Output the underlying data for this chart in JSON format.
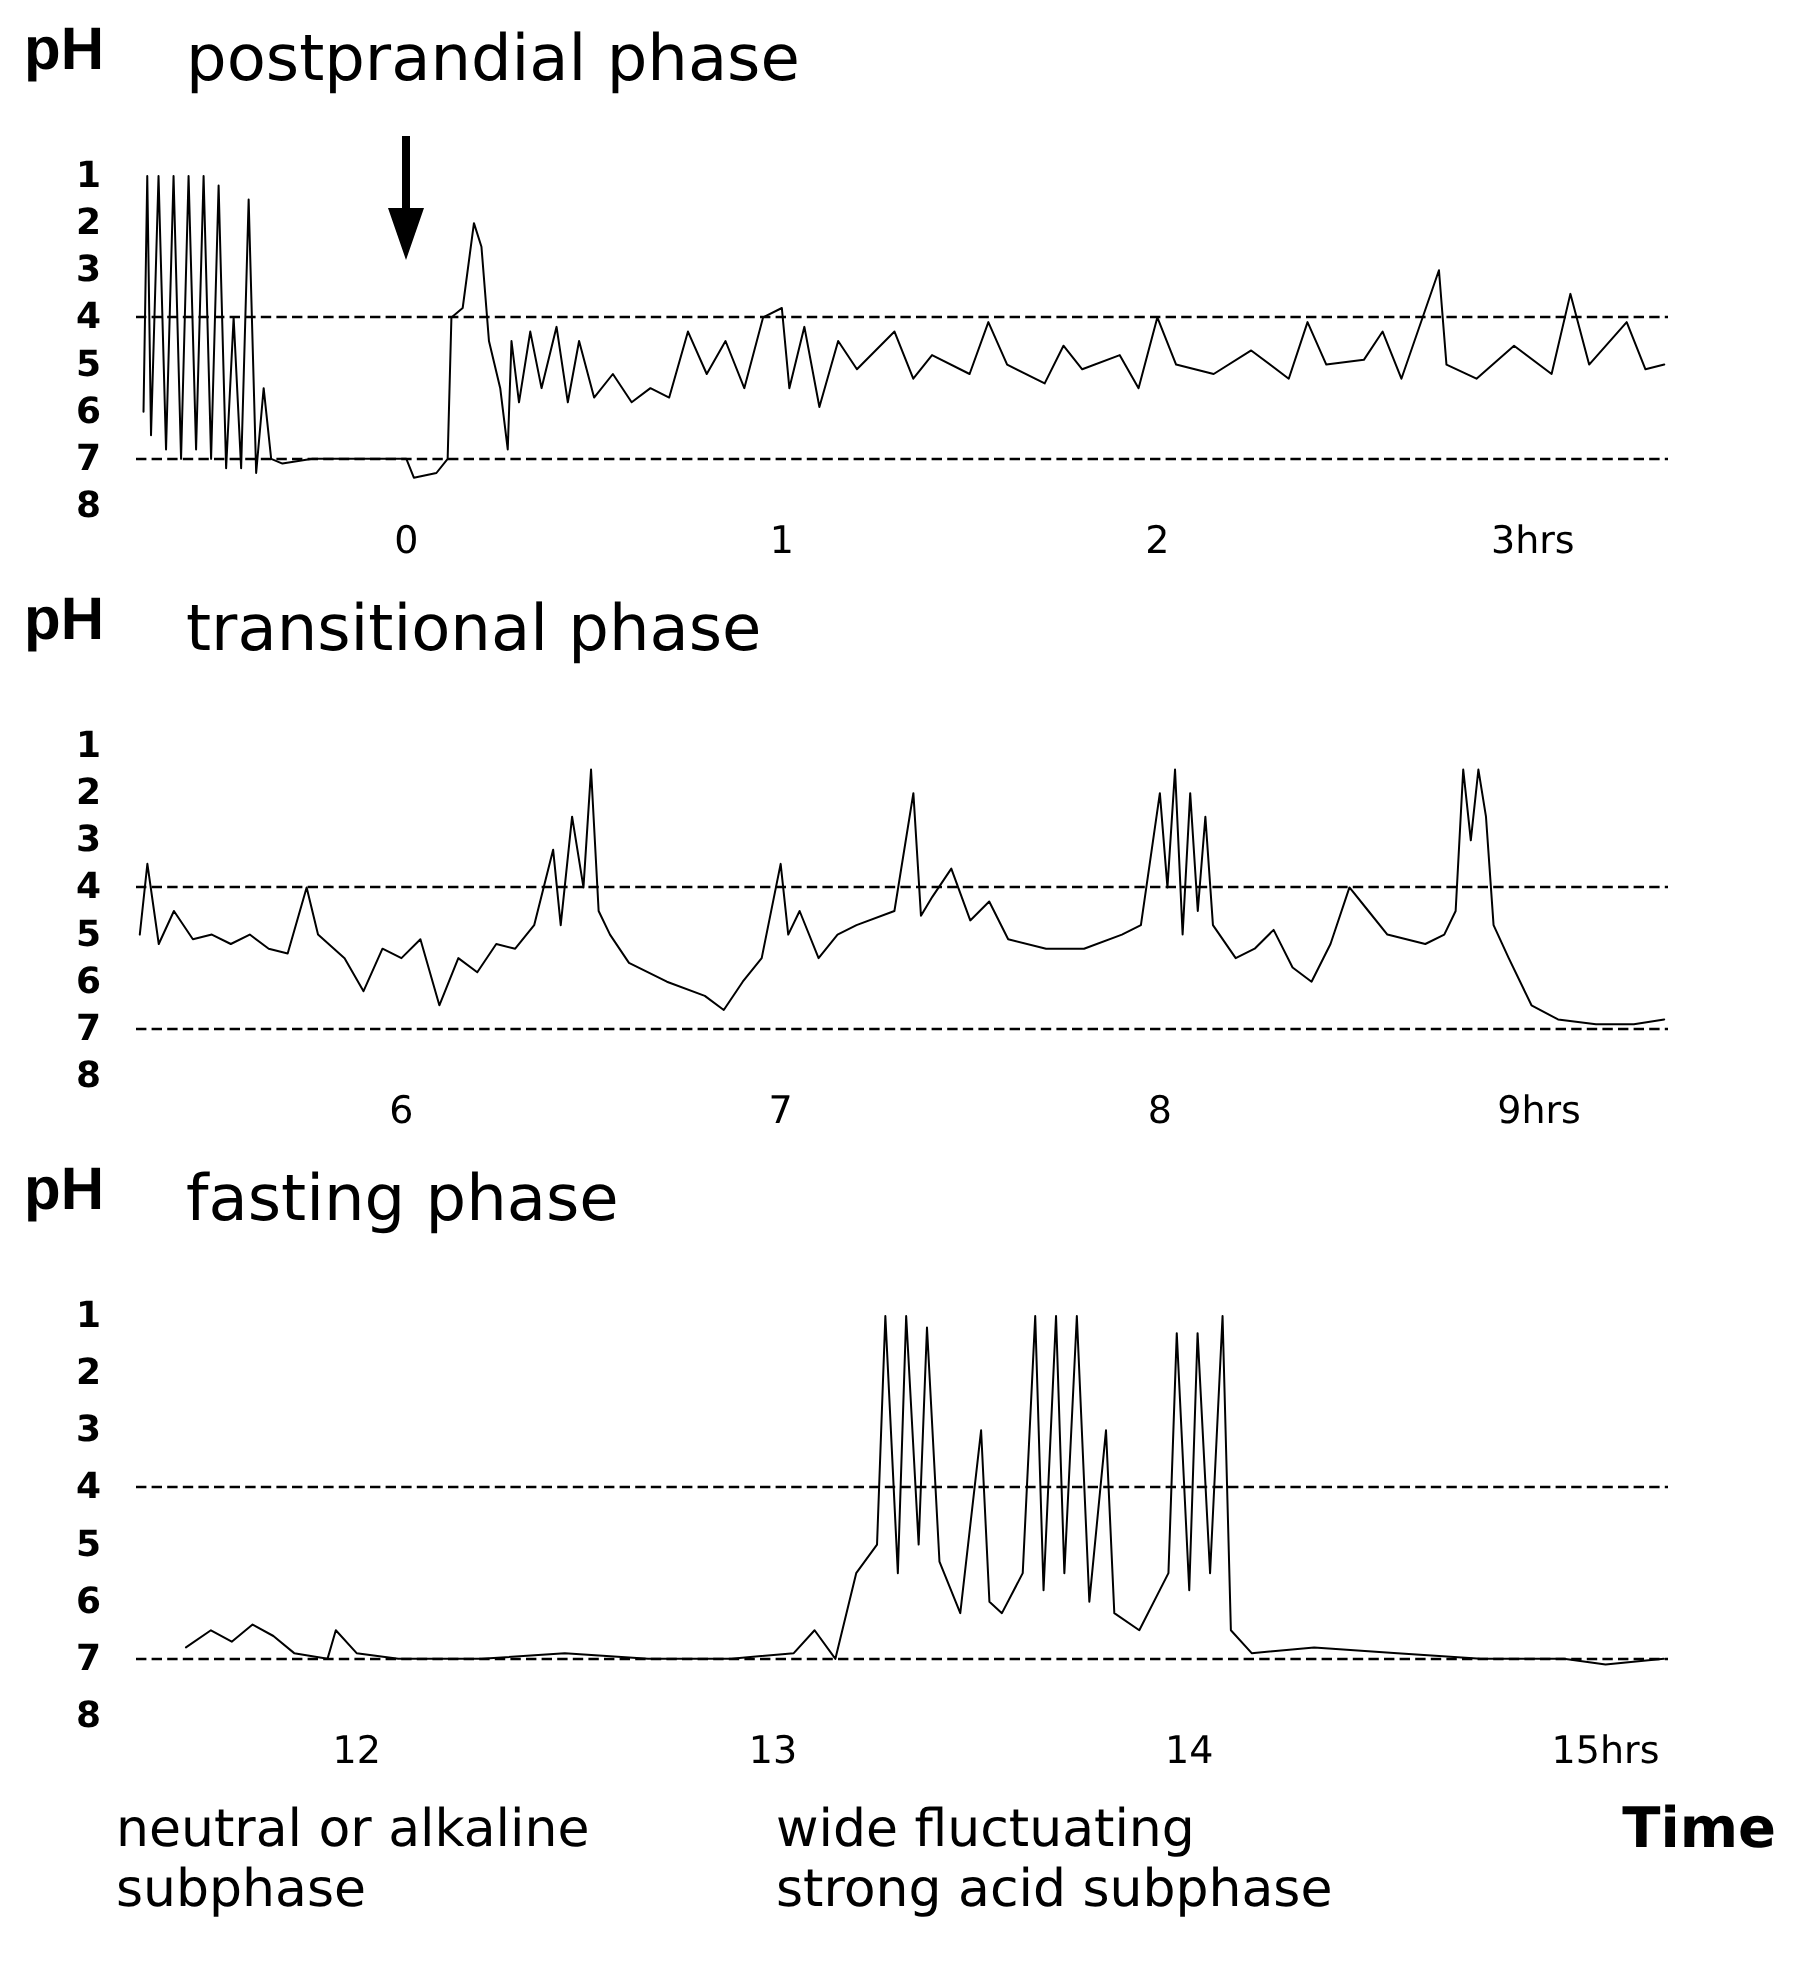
{
  "chart_data": [
    {
      "type": "line",
      "title": "postprandial phase",
      "ylabel": "pH",
      "xlim": [
        -0.72,
        3.36
      ],
      "xticks": [
        0,
        1,
        2,
        {
          "value": 3,
          "label": "3hrs"
        }
      ],
      "ylim": [
        8,
        1
      ],
      "yticks": [
        1,
        2,
        3,
        4,
        5,
        6,
        7,
        8
      ],
      "grid": false,
      "marker": "none",
      "line_style": "solid",
      "ref_lines": [
        {
          "axis": "y",
          "value": 4,
          "color": "#000000",
          "line_style": "dashed"
        },
        {
          "axis": "y",
          "value": 7,
          "color": "#000000",
          "line_style": "dashed"
        }
      ],
      "series": [
        {
          "color": "#000000",
          "x": [
            -0.7,
            -0.69,
            -0.68,
            -0.66,
            -0.64,
            -0.62,
            -0.6,
            -0.58,
            -0.56,
            -0.54,
            -0.52,
            -0.5,
            -0.48,
            -0.46,
            -0.44,
            -0.42,
            -0.4,
            -0.38,
            -0.36,
            -0.33,
            -0.25,
            -0.15,
            -0.05,
            0,
            0.02,
            0.08,
            0.11,
            0.12,
            0.15,
            0.18,
            0.2,
            0.22,
            0.25,
            0.27,
            0.28,
            0.3,
            0.33,
            0.36,
            0.4,
            0.43,
            0.46,
            0.5,
            0.55,
            0.6,
            0.65,
            0.7,
            0.75,
            0.8,
            0.85,
            0.9,
            0.95,
            1,
            1.02,
            1.06,
            1.1,
            1.15,
            1.2,
            1.3,
            1.35,
            1.4,
            1.5,
            1.55,
            1.6,
            1.7,
            1.75,
            1.8,
            1.9,
            1.95,
            2,
            2.05,
            2.15,
            2.25,
            2.35,
            2.4,
            2.45,
            2.55,
            2.6,
            2.65,
            2.75,
            2.77,
            2.85,
            2.95,
            3.05,
            3.1,
            3.15,
            3.25,
            3.3,
            3.35
          ],
          "values": [
            6,
            1,
            6.5,
            1,
            6.8,
            1,
            7,
            1,
            6.8,
            1,
            7,
            1.2,
            7.2,
            4,
            7.2,
            1.5,
            7.3,
            5.5,
            7,
            7.1,
            7,
            7,
            7,
            7,
            7.4,
            7.3,
            7,
            4,
            3.8,
            2,
            2.5,
            4.5,
            5.5,
            6.8,
            4.5,
            5.8,
            4.3,
            5.5,
            4.2,
            5.8,
            4.5,
            5.7,
            5.2,
            5.8,
            5.5,
            5.7,
            4.3,
            5.2,
            4.5,
            5.5,
            4,
            3.8,
            5.5,
            4.2,
            5.9,
            4.5,
            5.1,
            4.3,
            5.3,
            4.8,
            5.2,
            4.1,
            5,
            5.4,
            4.6,
            5.1,
            4.8,
            5.5,
            4,
            5,
            5.2,
            4.7,
            5.3,
            4.1,
            5,
            4.9,
            4.3,
            5.3,
            3,
            5,
            5.3,
            4.6,
            5.2,
            3.5,
            5,
            4.1,
            5.1,
            5
          ]
        }
      ]
    },
    {
      "type": "line",
      "title": "transitional phase",
      "ylabel": "pH",
      "xlim": [
        5.3,
        9.34
      ],
      "xticks": [
        6,
        7,
        8,
        {
          "value": 9,
          "label": "9hrs"
        }
      ],
      "ylim": [
        8,
        1
      ],
      "yticks": [
        1,
        2,
        3,
        4,
        5,
        6,
        7,
        8
      ],
      "grid": false,
      "marker": "none",
      "line_style": "solid",
      "ref_lines": [
        {
          "axis": "y",
          "value": 4,
          "color": "#000000",
          "line_style": "dashed"
        },
        {
          "axis": "y",
          "value": 7,
          "color": "#000000",
          "line_style": "dashed"
        }
      ],
      "series": [
        {
          "color": "#000000",
          "x": [
            5.31,
            5.33,
            5.36,
            5.4,
            5.45,
            5.5,
            5.55,
            5.6,
            5.65,
            5.7,
            5.75,
            5.78,
            5.85,
            5.9,
            5.95,
            6,
            6.05,
            6.1,
            6.15,
            6.2,
            6.25,
            6.3,
            6.35,
            6.4,
            6.42,
            6.45,
            6.48,
            6.5,
            6.52,
            6.55,
            6.6,
            6.7,
            6.8,
            6.85,
            6.9,
            6.95,
            7,
            7.02,
            7.05,
            7.1,
            7.15,
            7.2,
            7.3,
            7.35,
            7.37,
            7.4,
            7.45,
            7.5,
            7.55,
            7.6,
            7.7,
            7.8,
            7.9,
            7.95,
            8,
            8.02,
            8.04,
            8.06,
            8.08,
            8.1,
            8.12,
            8.14,
            8.2,
            8.25,
            8.3,
            8.35,
            8.4,
            8.45,
            8.5,
            8.55,
            8.6,
            8.7,
            8.75,
            8.78,
            8.8,
            8.82,
            8.84,
            8.86,
            8.88,
            8.92,
            8.98,
            9.05,
            9.15,
            9.25,
            9.33
          ],
          "values": [
            5,
            3.5,
            5.2,
            4.5,
            5.1,
            5,
            5.2,
            5,
            5.3,
            5.4,
            4,
            5,
            5.5,
            6.2,
            5.3,
            5.5,
            5.1,
            6.5,
            5.5,
            5.8,
            5.2,
            5.3,
            4.8,
            3.2,
            4.8,
            2.5,
            4,
            1.5,
            4.5,
            5,
            5.6,
            6,
            6.3,
            6.6,
            6,
            5.5,
            3.5,
            5,
            4.5,
            5.5,
            5,
            4.8,
            4.5,
            2,
            4.6,
            4.2,
            3.6,
            4.7,
            4.3,
            5.1,
            5.3,
            5.3,
            5,
            4.8,
            2,
            4,
            1.5,
            5,
            2,
            4.5,
            2.5,
            4.8,
            5.5,
            5.3,
            4.9,
            5.7,
            6,
            5.2,
            4,
            4.5,
            5,
            5.2,
            5,
            4.5,
            1.5,
            3,
            1.5,
            2.5,
            4.8,
            5.5,
            6.5,
            6.8,
            6.9,
            6.9,
            6.8
          ]
        }
      ]
    },
    {
      "type": "line",
      "title": "fasting phase",
      "ylabel": "pH",
      "xlabel": "Time",
      "xlim": [
        11.47,
        15.15
      ],
      "xticks": [
        12,
        13,
        14,
        {
          "value": 15,
          "label": "15hrs"
        }
      ],
      "ylim": [
        8,
        1
      ],
      "yticks": [
        1,
        2,
        3,
        4,
        5,
        6,
        7,
        8
      ],
      "grid": false,
      "marker": "none",
      "line_style": "solid",
      "ref_lines": [
        {
          "axis": "y",
          "value": 4,
          "color": "#000000",
          "line_style": "dashed"
        },
        {
          "axis": "y",
          "value": 7,
          "color": "#000000",
          "line_style": "dashed"
        }
      ],
      "annotations": [
        "neutral or alkaline subphase",
        "wide fluctuating strong acid subphase"
      ],
      "series": [
        {
          "color": "#000000",
          "x": [
            11.59,
            11.65,
            11.7,
            11.75,
            11.8,
            11.85,
            11.93,
            11.95,
            12,
            12.1,
            12.3,
            12.5,
            12.7,
            12.9,
            13.05,
            13.1,
            13.15,
            13.2,
            13.25,
            13.27,
            13.3,
            13.32,
            13.35,
            13.37,
            13.4,
            13.45,
            13.5,
            13.52,
            13.55,
            13.6,
            13.63,
            13.65,
            13.68,
            13.7,
            13.73,
            13.76,
            13.8,
            13.82,
            13.88,
            13.95,
            13.97,
            14,
            14.02,
            14.05,
            14.08,
            14.1,
            14.15,
            14.3,
            14.5,
            14.7,
            14.9,
            15,
            15.14
          ],
          "values": [
            6.8,
            6.5,
            6.7,
            6.4,
            6.6,
            6.9,
            7,
            6.5,
            6.9,
            7,
            7,
            6.9,
            7,
            7,
            6.9,
            6.5,
            7,
            5.5,
            5,
            1,
            5.5,
            1,
            5,
            1.2,
            5.3,
            6.2,
            3,
            6,
            6.2,
            5.5,
            1,
            5.8,
            1,
            5.5,
            1,
            6,
            3,
            6.2,
            6.5,
            5.5,
            1.3,
            5.8,
            1.3,
            5.5,
            1,
            6.5,
            6.9,
            6.8,
            6.9,
            7,
            7,
            7.1,
            7
          ]
        }
      ]
    }
  ]
}
